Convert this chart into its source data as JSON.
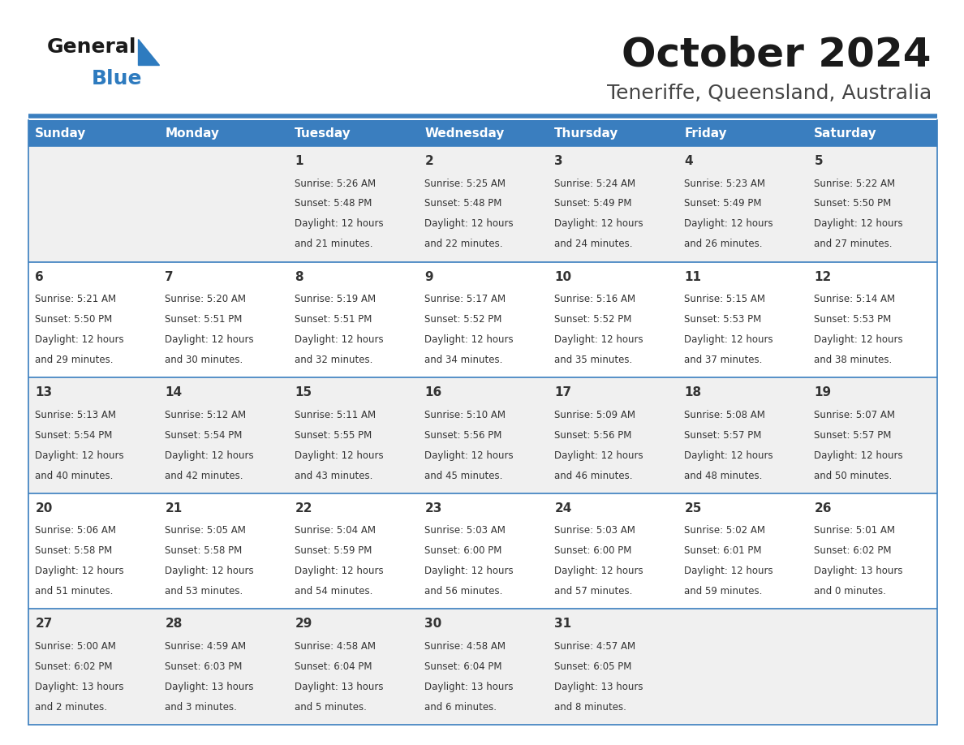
{
  "title": "October 2024",
  "subtitle": "Teneriffe, Queensland, Australia",
  "days_of_week": [
    "Sunday",
    "Monday",
    "Tuesday",
    "Wednesday",
    "Thursday",
    "Friday",
    "Saturday"
  ],
  "header_bg": "#3a7ebf",
  "header_text_color": "#ffffff",
  "row_bg_light": "#f0f0f0",
  "row_bg_white": "#ffffff",
  "cell_border_color": "#3a7ebf",
  "text_color": "#333333",
  "title_color": "#1a1a1a",
  "subtitle_color": "#444444",
  "logo_general_color": "#1a1a1a",
  "logo_blue_color": "#2e7bbf",
  "weeks": [
    [
      {
        "day": "",
        "sunrise": "",
        "sunset": "",
        "daylight": ""
      },
      {
        "day": "",
        "sunrise": "",
        "sunset": "",
        "daylight": ""
      },
      {
        "day": "1",
        "sunrise": "5:26 AM",
        "sunset": "5:48 PM",
        "daylight": "12 hours and 21 minutes."
      },
      {
        "day": "2",
        "sunrise": "5:25 AM",
        "sunset": "5:48 PM",
        "daylight": "12 hours and 22 minutes."
      },
      {
        "day": "3",
        "sunrise": "5:24 AM",
        "sunset": "5:49 PM",
        "daylight": "12 hours and 24 minutes."
      },
      {
        "day": "4",
        "sunrise": "5:23 AM",
        "sunset": "5:49 PM",
        "daylight": "12 hours and 26 minutes."
      },
      {
        "day": "5",
        "sunrise": "5:22 AM",
        "sunset": "5:50 PM",
        "daylight": "12 hours and 27 minutes."
      }
    ],
    [
      {
        "day": "6",
        "sunrise": "5:21 AM",
        "sunset": "5:50 PM",
        "daylight": "12 hours and 29 minutes."
      },
      {
        "day": "7",
        "sunrise": "5:20 AM",
        "sunset": "5:51 PM",
        "daylight": "12 hours and 30 minutes."
      },
      {
        "day": "8",
        "sunrise": "5:19 AM",
        "sunset": "5:51 PM",
        "daylight": "12 hours and 32 minutes."
      },
      {
        "day": "9",
        "sunrise": "5:17 AM",
        "sunset": "5:52 PM",
        "daylight": "12 hours and 34 minutes."
      },
      {
        "day": "10",
        "sunrise": "5:16 AM",
        "sunset": "5:52 PM",
        "daylight": "12 hours and 35 minutes."
      },
      {
        "day": "11",
        "sunrise": "5:15 AM",
        "sunset": "5:53 PM",
        "daylight": "12 hours and 37 minutes."
      },
      {
        "day": "12",
        "sunrise": "5:14 AM",
        "sunset": "5:53 PM",
        "daylight": "12 hours and 38 minutes."
      }
    ],
    [
      {
        "day": "13",
        "sunrise": "5:13 AM",
        "sunset": "5:54 PM",
        "daylight": "12 hours and 40 minutes."
      },
      {
        "day": "14",
        "sunrise": "5:12 AM",
        "sunset": "5:54 PM",
        "daylight": "12 hours and 42 minutes."
      },
      {
        "day": "15",
        "sunrise": "5:11 AM",
        "sunset": "5:55 PM",
        "daylight": "12 hours and 43 minutes."
      },
      {
        "day": "16",
        "sunrise": "5:10 AM",
        "sunset": "5:56 PM",
        "daylight": "12 hours and 45 minutes."
      },
      {
        "day": "17",
        "sunrise": "5:09 AM",
        "sunset": "5:56 PM",
        "daylight": "12 hours and 46 minutes."
      },
      {
        "day": "18",
        "sunrise": "5:08 AM",
        "sunset": "5:57 PM",
        "daylight": "12 hours and 48 minutes."
      },
      {
        "day": "19",
        "sunrise": "5:07 AM",
        "sunset": "5:57 PM",
        "daylight": "12 hours and 50 minutes."
      }
    ],
    [
      {
        "day": "20",
        "sunrise": "5:06 AM",
        "sunset": "5:58 PM",
        "daylight": "12 hours and 51 minutes."
      },
      {
        "day": "21",
        "sunrise": "5:05 AM",
        "sunset": "5:58 PM",
        "daylight": "12 hours and 53 minutes."
      },
      {
        "day": "22",
        "sunrise": "5:04 AM",
        "sunset": "5:59 PM",
        "daylight": "12 hours and 54 minutes."
      },
      {
        "day": "23",
        "sunrise": "5:03 AM",
        "sunset": "6:00 PM",
        "daylight": "12 hours and 56 minutes."
      },
      {
        "day": "24",
        "sunrise": "5:03 AM",
        "sunset": "6:00 PM",
        "daylight": "12 hours and 57 minutes."
      },
      {
        "day": "25",
        "sunrise": "5:02 AM",
        "sunset": "6:01 PM",
        "daylight": "12 hours and 59 minutes."
      },
      {
        "day": "26",
        "sunrise": "5:01 AM",
        "sunset": "6:02 PM",
        "daylight": "13 hours and 0 minutes."
      }
    ],
    [
      {
        "day": "27",
        "sunrise": "5:00 AM",
        "sunset": "6:02 PM",
        "daylight": "13 hours and 2 minutes."
      },
      {
        "day": "28",
        "sunrise": "4:59 AM",
        "sunset": "6:03 PM",
        "daylight": "13 hours and 3 minutes."
      },
      {
        "day": "29",
        "sunrise": "4:58 AM",
        "sunset": "6:04 PM",
        "daylight": "13 hours and 5 minutes."
      },
      {
        "day": "30",
        "sunrise": "4:58 AM",
        "sunset": "6:04 PM",
        "daylight": "13 hours and 6 minutes."
      },
      {
        "day": "31",
        "sunrise": "4:57 AM",
        "sunset": "6:05 PM",
        "daylight": "13 hours and 8 minutes."
      },
      {
        "day": "",
        "sunrise": "",
        "sunset": "",
        "daylight": ""
      },
      {
        "day": "",
        "sunrise": "",
        "sunset": "",
        "daylight": ""
      }
    ]
  ],
  "figwidth": 11.88,
  "figheight": 9.18,
  "dpi": 100
}
